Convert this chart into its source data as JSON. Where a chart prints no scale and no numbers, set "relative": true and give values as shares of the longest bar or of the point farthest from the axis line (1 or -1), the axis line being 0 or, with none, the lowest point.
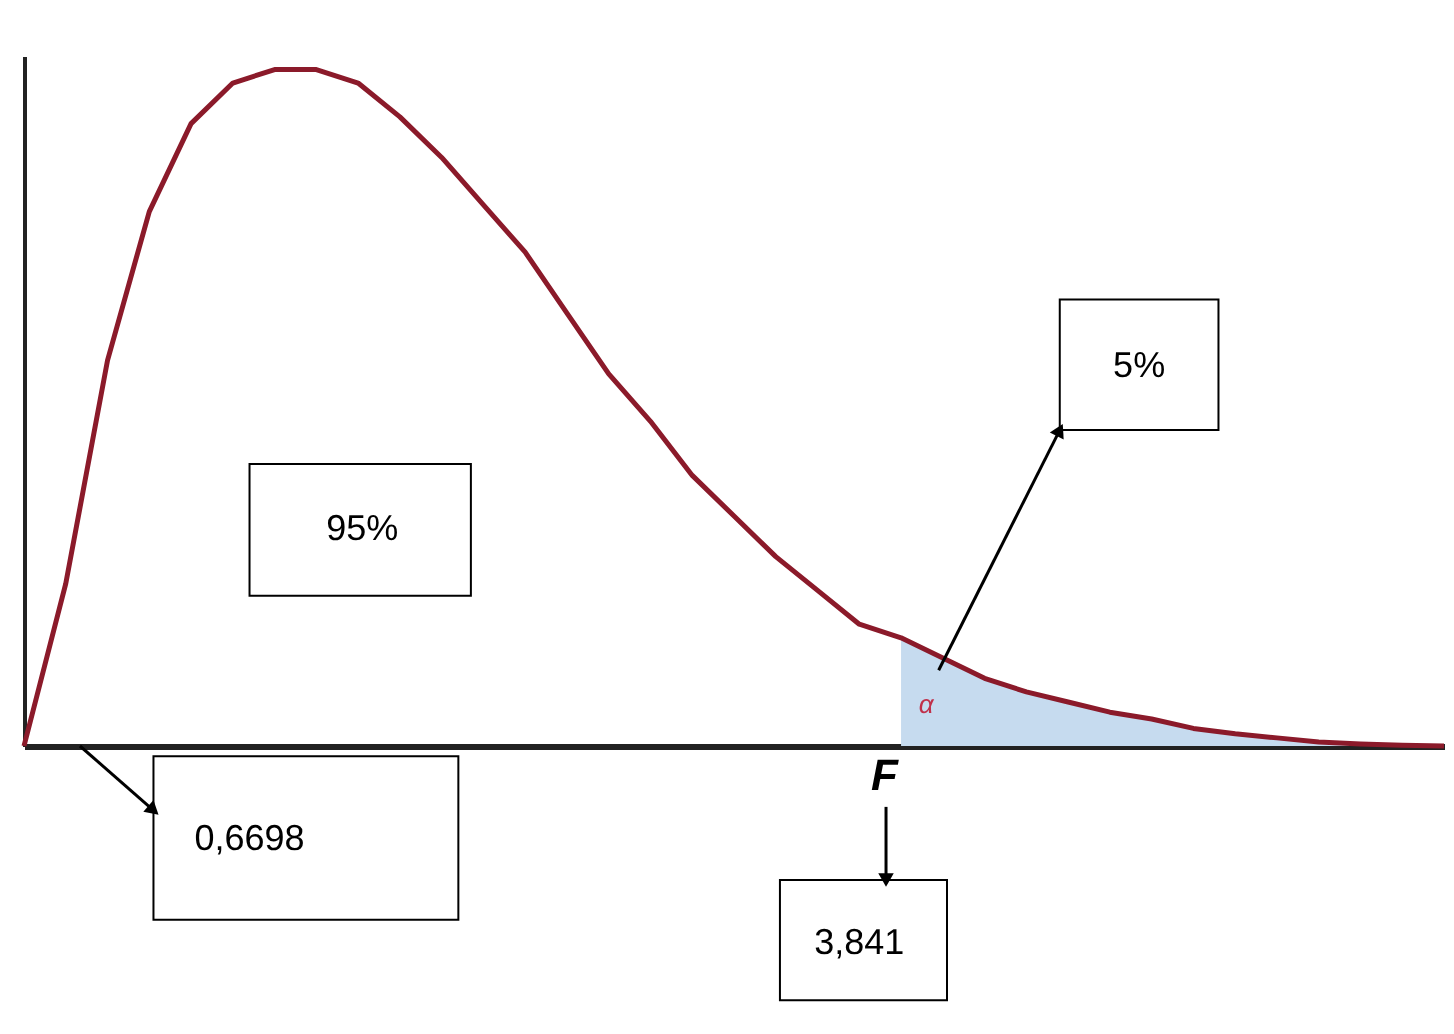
{
  "chart_data": {
    "type": "line",
    "relative": true,
    "categories": [
      null,
      null,
      null,
      null,
      null,
      null,
      null,
      null,
      null,
      null,
      null,
      null,
      null,
      null,
      null,
      null,
      null,
      null,
      null,
      null,
      null,
      null,
      null,
      null,
      null,
      null,
      null,
      null,
      null,
      null,
      null,
      null,
      null,
      null,
      null
    ],
    "series": [
      {
        "type": "area",
        "color": "#c6dbef",
        "values": [
          null,
          null,
          null,
          null,
          null,
          null,
          null,
          null,
          null,
          null,
          null,
          null,
          null,
          null,
          null,
          null,
          null,
          null,
          null,
          null,
          null,
          0.16,
          0.13,
          0.1,
          0.08,
          0.065,
          0.05,
          0.04,
          0.026,
          0.018,
          0.012,
          0.006,
          0.003,
          0.001,
          0
        ]
      },
      {
        "type": "line",
        "color": "#8b1a2a",
        "values": [
          0,
          0.24,
          0.57,
          0.79,
          0.92,
          0.98,
          1,
          1,
          0.98,
          0.93,
          0.87,
          0.8,
          0.73,
          0.64,
          0.55,
          0.48,
          0.4,
          0.34,
          0.28,
          0.23,
          0.18,
          0.16,
          0.13,
          0.1,
          0.08,
          0.065,
          0.05,
          0.04,
          0.026,
          0.018,
          0.012,
          0.006,
          0.003,
          0.001,
          0
        ]
      }
    ],
    "annotations": [
      "95%",
      "5%",
      "α",
      "F",
      "0,6698",
      "3,841"
    ]
  }
}
